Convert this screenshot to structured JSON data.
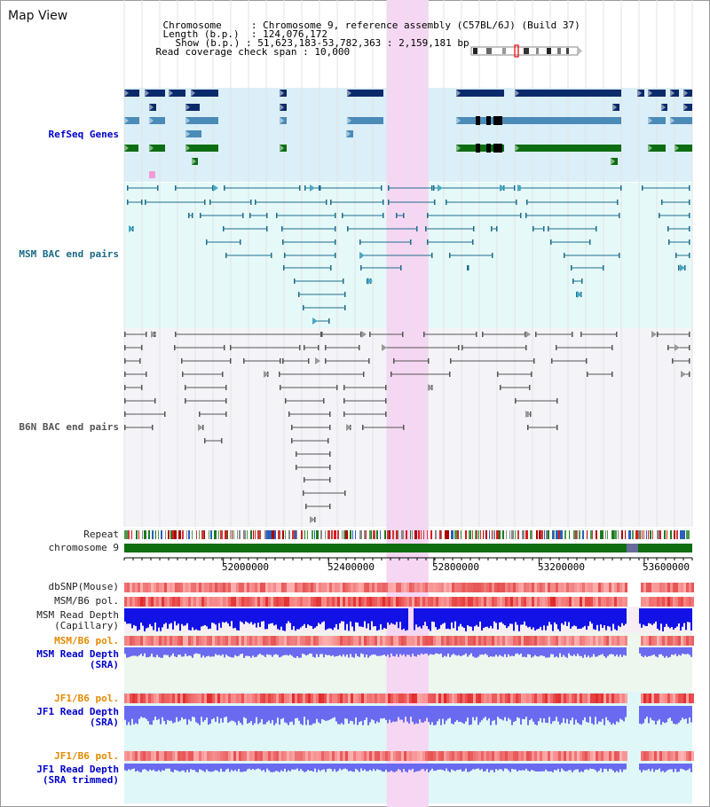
{
  "title": "Map View",
  "info": {
    "chromosome_label": "Chromosome",
    "chromosome_value": "Chromosome 9, reference assembly (C57BL/6J) (Build 37)",
    "length_label": "Length (b.p.)",
    "length_value": "124,076,172",
    "show_label": "Show (b.p.)",
    "show_value": "51,623,183-53,782,363 : 2,159,181 bp",
    "read_cov_label": "Read coverage check span",
    "read_cov_value": "10,000"
  },
  "tracks": {
    "refseq": "RefSeq Genes",
    "msm_bac": "MSM BAC end pairs",
    "b6n_bac": "B6N BAC end pairs",
    "repeat": "Repeat",
    "chromosome": "chromosome 9",
    "dbsnp": "dbSNP(Mouse)",
    "msm_b6_pol_1": "MSM/B6 pol.",
    "msm_read_depth_cap_1": "MSM Read Depth",
    "msm_read_depth_cap_2": "(Capillary)",
    "msm_b6_pol_2": "MSM/B6 pol.",
    "msm_read_depth_sra_1": "MSM Read Depth",
    "msm_read_depth_sra_2": "(SRA)",
    "jf1_b6_pol_1": "JF1/B6 pol.",
    "jf1_read_depth_sra_1": "JF1 Read Depth",
    "jf1_read_depth_sra_2": "(SRA)",
    "jf1_b6_pol_2": "JF1/B6 pol.",
    "jf1_read_depth_trim_1": "JF1 Read Depth",
    "jf1_read_depth_trim_2": "(SRA trimmed)"
  },
  "axis": {
    "start_bp": 51623183,
    "end_bp": 53782363,
    "ticks": [
      "52000000",
      "52400000",
      "52800000",
      "53200000",
      "53600000"
    ],
    "tick_values": [
      52000000,
      52400000,
      52800000,
      53200000,
      53600000
    ]
  },
  "highlight": {
    "start_bp": 52620000,
    "end_bp": 52780000
  },
  "colors": {
    "refseq_dark": "#0b2a6b",
    "refseq_mid": "#4a8bb8",
    "refseq_green": "#0d6d12",
    "msm_bac": "#1c6d8c",
    "b6n_bac": "#555555",
    "highlight": "#f6d7f3",
    "chromosome": "#0f6e10",
    "read_depth": "#1212e6",
    "read_depth_sra": "#6a6af0",
    "pol": "#ee3a3a"
  }
}
